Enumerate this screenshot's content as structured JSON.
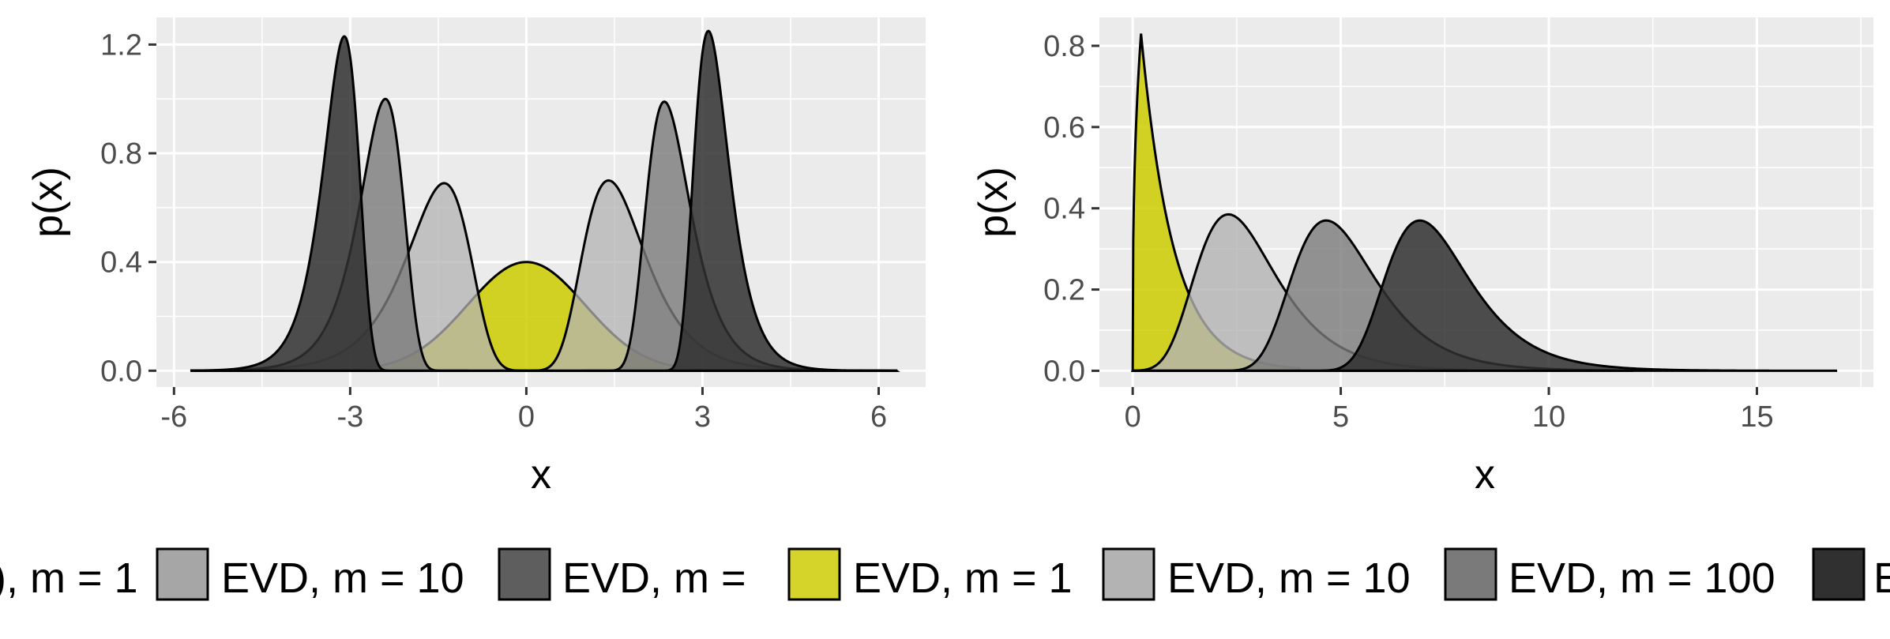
{
  "colors": {
    "panel_bg": "#ebebeb",
    "grid": "#ffffff",
    "gaussian": "#cccc00",
    "outline": "#000000"
  },
  "chart_data": [
    {
      "type": "area",
      "xlabel": "x",
      "ylabel": "p(x)",
      "xlim": [
        -6.3,
        6.8
      ],
      "ylim": [
        -0.06,
        1.3
      ],
      "x_ticks": [
        -6,
        -3,
        0,
        3,
        6
      ],
      "x_tick_labels": [
        "-6",
        "-3",
        "0",
        "3",
        "6"
      ],
      "y_ticks": [
        0.0,
        0.4,
        0.8,
        1.2
      ],
      "y_tick_labels": [
        "0.0",
        "0.4",
        "0.8",
        "1.2"
      ],
      "grid": true,
      "series": [
        {
          "kind": "normal",
          "center": 0.0,
          "peak": 0.4,
          "fill": "#cccc00",
          "alpha": 0.85,
          "x_range": [
            -5.7,
            6.3
          ]
        },
        {
          "kind": "gumbel_min",
          "center": -1.4,
          "peak": 0.69,
          "fill": "#b3b3b3",
          "alpha": 0.75,
          "x_range": [
            -5.7,
            0.5
          ]
        },
        {
          "kind": "gumbel_max",
          "center": 1.4,
          "peak": 0.7,
          "fill": "#b3b3b3",
          "alpha": 0.75,
          "x_range": [
            -0.5,
            6.3
          ]
        },
        {
          "kind": "gumbel_min",
          "center": -2.4,
          "peak": 1.0,
          "fill": "#7a7a7a",
          "alpha": 0.8,
          "x_range": [
            -5.7,
            0.0
          ]
        },
        {
          "kind": "gumbel_max",
          "center": 2.35,
          "peak": 0.99,
          "fill": "#7a7a7a",
          "alpha": 0.8,
          "x_range": [
            0.0,
            6.3
          ]
        },
        {
          "kind": "gumbel_min",
          "center": -3.1,
          "peak": 1.23,
          "fill": "#303030",
          "alpha": 0.85,
          "x_range": [
            -5.7,
            -1.0
          ]
        },
        {
          "kind": "gumbel_max",
          "center": 3.1,
          "peak": 1.25,
          "fill": "#303030",
          "alpha": 0.85,
          "x_range": [
            1.0,
            6.3
          ]
        }
      ]
    },
    {
      "type": "area",
      "xlabel": "x",
      "ylabel": "p(x)",
      "xlim": [
        -0.8,
        17.8
      ],
      "ylim": [
        -0.04,
        0.87
      ],
      "x_ticks": [
        0,
        5,
        10,
        15
      ],
      "x_tick_labels": [
        "0",
        "5",
        "10",
        "15"
      ],
      "y_ticks": [
        0.0,
        0.2,
        0.4,
        0.6,
        0.8
      ],
      "y_tick_labels": [
        "0.0",
        "0.2",
        "0.4",
        "0.6",
        "0.8"
      ],
      "grid": true,
      "series": [
        {
          "kind": "chi",
          "center": 0.2,
          "peak": 0.83,
          "fill": "#cccc00",
          "alpha": 0.85,
          "x_range": [
            0.0,
            4.0
          ]
        },
        {
          "kind": "gumbel_max",
          "center": 2.3,
          "peak": 0.385,
          "fill": "#b3b3b3",
          "alpha": 0.8,
          "x_range": [
            0.0,
            8.0
          ]
        },
        {
          "kind": "gumbel_max",
          "center": 4.65,
          "peak": 0.37,
          "fill": "#7a7a7a",
          "alpha": 0.8,
          "x_range": [
            0.0,
            12.0
          ]
        },
        {
          "kind": "gumbel_max",
          "center": 6.9,
          "peak": 0.37,
          "fill": "#303030",
          "alpha": 0.85,
          "x_range": [
            0.0,
            16.9
          ]
        }
      ]
    }
  ],
  "legend": {
    "items": [
      {
        "label": "), m = 1",
        "swatch": null
      },
      {
        "label": "EVD, m = 10",
        "swatch": "#a6a6a6"
      },
      {
        "label": "EVD, m =",
        "swatch": "#5e5e5e"
      },
      {
        "label": "EVD, m = 1",
        "swatch": "#d4d42a"
      },
      {
        "label": "EVD, m = 10",
        "swatch": "#b3b3b3"
      },
      {
        "label": "EVD, m = 100",
        "swatch": "#7a7a7a"
      },
      {
        "label": "E",
        "swatch": "#303030"
      }
    ]
  }
}
